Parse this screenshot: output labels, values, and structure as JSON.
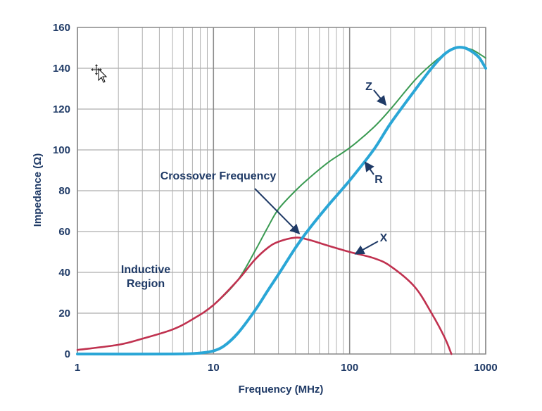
{
  "chart_data": {
    "type": "line",
    "title": "",
    "xlabel": "Frequency (MHz)",
    "ylabel": "Impedance (Ω)",
    "xscale": "log",
    "xlim": [
      1,
      1000
    ],
    "ylim": [
      0,
      160
    ],
    "grid": true,
    "x_ticks": [
      {
        "value": 1,
        "label": "1"
      },
      {
        "value": 10,
        "label": "10"
      },
      {
        "value": 100,
        "label": "100"
      },
      {
        "value": 1000,
        "label": "1000"
      }
    ],
    "y_ticks": [
      {
        "value": 0,
        "label": "0"
      },
      {
        "value": 20,
        "label": "20"
      },
      {
        "value": 40,
        "label": "40"
      },
      {
        "value": 60,
        "label": "60"
      },
      {
        "value": 80,
        "label": "80"
      },
      {
        "value": 100,
        "label": "100"
      },
      {
        "value": 120,
        "label": "120"
      },
      {
        "value": 140,
        "label": "140"
      },
      {
        "value": 160,
        "label": "160"
      }
    ],
    "series": [
      {
        "name": "Z",
        "color": "#3a9a52",
        "points": [
          [
            1,
            2
          ],
          [
            2,
            4.5
          ],
          [
            3,
            7.5
          ],
          [
            5,
            12
          ],
          [
            7,
            17
          ],
          [
            10,
            24
          ],
          [
            15,
            36
          ],
          [
            20,
            50
          ],
          [
            25,
            62
          ],
          [
            30,
            71
          ],
          [
            40,
            80
          ],
          [
            50,
            86
          ],
          [
            70,
            94
          ],
          [
            100,
            101
          ],
          [
            150,
            111
          ],
          [
            200,
            120
          ],
          [
            300,
            134
          ],
          [
            400,
            142
          ],
          [
            500,
            147
          ],
          [
            600,
            150
          ],
          [
            700,
            150
          ],
          [
            800,
            149
          ],
          [
            900,
            147
          ],
          [
            1000,
            145
          ]
        ]
      },
      {
        "name": "R",
        "color": "#2aa6d6",
        "points": [
          [
            1,
            0
          ],
          [
            5,
            0
          ],
          [
            8,
            0.5
          ],
          [
            10,
            1.5
          ],
          [
            12,
            4
          ],
          [
            15,
            10
          ],
          [
            20,
            21
          ],
          [
            25,
            31
          ],
          [
            30,
            39
          ],
          [
            40,
            52
          ],
          [
            50,
            61
          ],
          [
            70,
            73
          ],
          [
            100,
            85
          ],
          [
            150,
            100
          ],
          [
            200,
            113
          ],
          [
            300,
            129
          ],
          [
            400,
            140
          ],
          [
            500,
            147
          ],
          [
            600,
            150
          ],
          [
            700,
            150
          ],
          [
            800,
            148
          ],
          [
            900,
            145
          ],
          [
            1000,
            140
          ]
        ]
      },
      {
        "name": "X",
        "color": "#c0314f",
        "points": [
          [
            1,
            2
          ],
          [
            2,
            4.5
          ],
          [
            3,
            7.5
          ],
          [
            5,
            12
          ],
          [
            7,
            17
          ],
          [
            10,
            24
          ],
          [
            15,
            36
          ],
          [
            20,
            46
          ],
          [
            25,
            52
          ],
          [
            30,
            55
          ],
          [
            40,
            57
          ],
          [
            50,
            56
          ],
          [
            70,
            53
          ],
          [
            100,
            50
          ],
          [
            150,
            47
          ],
          [
            200,
            43
          ],
          [
            300,
            33
          ],
          [
            400,
            20
          ],
          [
            500,
            8
          ],
          [
            560,
            0
          ]
        ]
      }
    ],
    "annotations": [
      {
        "text": "Crossover Frequency",
        "target": [
          44,
          57
        ]
      },
      {
        "text_lines": [
          "Inductive",
          "Region"
        ]
      }
    ],
    "series_labels": [
      {
        "text": "Z",
        "series": "Z"
      },
      {
        "text": "R",
        "series": "R"
      },
      {
        "text": "X",
        "series": "X"
      }
    ]
  }
}
